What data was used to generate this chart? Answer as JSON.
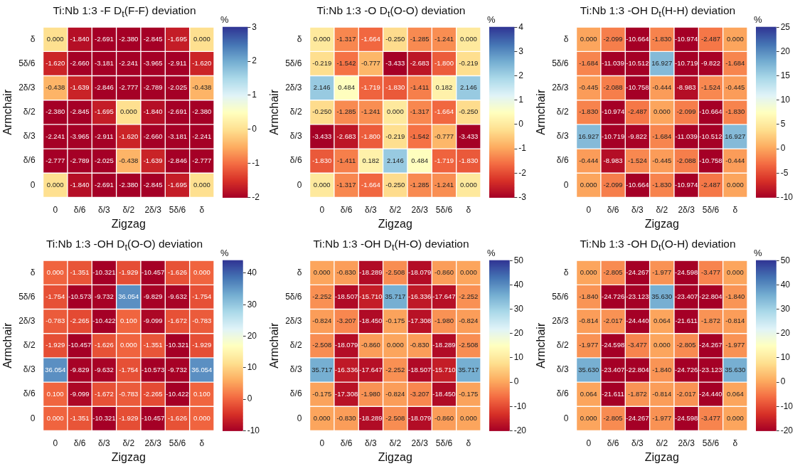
{
  "chart_data": [
    {
      "type": "heatmap",
      "title": "Ti:Nb 1:3 -F D$_{t}$(F-F) deviation",
      "xlabel": "Zigzag",
      "ylabel": "Armchair",
      "clabel": "%",
      "categories": [
        "0",
        "δ/6",
        "δ/3",
        "δ/2",
        "2δ/3",
        "5δ/6",
        "δ"
      ],
      "y_categories": [
        "δ",
        "5δ/6",
        "2δ/3",
        "δ/2",
        "δ/3",
        "δ/6",
        "0"
      ],
      "clim": [
        -2,
        3
      ],
      "cticks": [
        -2,
        -1,
        0,
        1,
        2,
        3
      ],
      "cells": [
        [
          0.0,
          -1.84,
          -2.691,
          -2.38,
          -2.845,
          -1.695,
          0.0
        ],
        [
          -1.62,
          -2.66,
          -3.181,
          -2.241,
          -3.965,
          -2.911,
          -1.62
        ],
        [
          -0.438,
          -1.639,
          -2.846,
          -2.777,
          -2.789,
          -2.025,
          -0.438
        ],
        [
          -2.38,
          -2.845,
          -1.695,
          0.0,
          -1.84,
          -2.691,
          -2.38
        ],
        [
          -2.241,
          -3.965,
          -2.911,
          -1.62,
          -2.66,
          -3.181,
          -2.241
        ],
        [
          -2.777,
          -2.789,
          -2.025,
          -0.438,
          -1.639,
          -2.846,
          -2.777
        ],
        [
          0.0,
          -1.84,
          -2.691,
          -2.38,
          -2.845,
          -1.695,
          0.0
        ]
      ],
      "cell_labels": [
        [
          "0.000",
          "-1.840",
          "-2.691",
          "-2.380",
          "-2.845",
          "-1.695",
          "0.000"
        ],
        [
          "-1.620",
          "-2.660",
          "-3.181",
          "-2.241",
          "-3.965",
          "-2.911",
          "-1.620"
        ],
        [
          "-0.438",
          "-1.639",
          "-2.846",
          "-2.777",
          "-2.789",
          "-2.025",
          "-0.438"
        ],
        [
          "-2.380",
          "-2.845",
          "-1.695",
          "0.000",
          "-1.840",
          "-2.691",
          "-2.380"
        ],
        [
          "-2.241",
          "-3.965",
          "-2.911",
          "-1.620",
          "-2.660",
          "-3.181",
          "-2.241"
        ],
        [
          "-2.777",
          "-2.789",
          "-2.025",
          "-0.438",
          "-1.639",
          "-2.846",
          "-2.777"
        ],
        [
          "0.000",
          "-1.840",
          "-2.691",
          "-2.380",
          "-2.845",
          "-1.695",
          "0.000"
        ]
      ]
    },
    {
      "type": "heatmap",
      "title": "Ti:Nb 1:3 -O D$_{t}$(O-O) deviation",
      "xlabel": "Zigzag",
      "ylabel": "Armchair",
      "clabel": "%",
      "categories": [
        "0",
        "δ/6",
        "δ/3",
        "δ/2",
        "2δ/3",
        "5δ/6",
        "δ"
      ],
      "y_categories": [
        "δ",
        "5δ/6",
        "2δ/3",
        "δ/2",
        "δ/3",
        "δ/6",
        "0"
      ],
      "clim": [
        -3,
        4
      ],
      "cticks": [
        -3,
        -2,
        -1,
        0,
        1,
        2,
        3,
        4
      ],
      "cells": [
        [
          0.0,
          -1.317,
          -1.664,
          -0.25,
          -1.285,
          -1.241,
          0.0
        ],
        [
          -0.219,
          -1.542,
          -0.777,
          -3.433,
          -2.683,
          -1.8,
          -0.219
        ],
        [
          2.146,
          0.484,
          -1.719,
          -1.83,
          -1.411,
          0.182,
          2.146
        ],
        [
          -0.25,
          -1.285,
          -1.241,
          0.0,
          -1.317,
          -1.664,
          -0.25
        ],
        [
          -3.433,
          -2.683,
          -1.8,
          -0.219,
          -1.542,
          -0.777,
          -3.433
        ],
        [
          -1.83,
          -1.411,
          0.182,
          2.146,
          0.484,
          -1.719,
          -1.83
        ],
        [
          0.0,
          -1.317,
          -1.664,
          -0.25,
          -1.285,
          -1.241,
          0.0
        ]
      ],
      "cell_labels": [
        [
          "0.000",
          "-1.317",
          "-1.664",
          "-0.250",
          "-1.285",
          "-1.241",
          "0.000"
        ],
        [
          "-0.219",
          "-1.542",
          "-0.777",
          "-3.433",
          "-2.683",
          "-1.800",
          "-0.219"
        ],
        [
          "2.146",
          "0.484",
          "-1.719",
          "-1.830",
          "-1.411",
          "0.182",
          "2.146"
        ],
        [
          "-0.250",
          "-1.285",
          "-1.241",
          "0.000",
          "-1.317",
          "-1.664",
          "-0.250"
        ],
        [
          "-3.433",
          "-2.683",
          "-1.800",
          "-0.219",
          "-1.542",
          "-0.777",
          "-3.433"
        ],
        [
          "-1.830",
          "-1.411",
          "0.182",
          "2.146",
          "0.484",
          "-1.719",
          "-1.830"
        ],
        [
          "0.000",
          "-1.317",
          "-1.664",
          "-0.250",
          "-1.285",
          "-1.241",
          "0.000"
        ]
      ]
    },
    {
      "type": "heatmap",
      "title": "Ti:Nb 1:3 -OH D$_{t}$(H-H) deviation",
      "xlabel": "Zigzag",
      "ylabel": "Armchair",
      "clabel": "%",
      "categories": [
        "0",
        "δ/6",
        "δ/3",
        "δ/2",
        "2δ/3",
        "5δ/6",
        "δ"
      ],
      "y_categories": [
        "δ",
        "5δ/6",
        "2δ/3",
        "δ/2",
        "δ/3",
        "δ/6",
        "0"
      ],
      "clim": [
        -10,
        25
      ],
      "cticks": [
        -10,
        -5,
        0,
        5,
        10,
        15,
        20,
        25
      ],
      "cells": [
        [
          0.0,
          -2.099,
          -10.664,
          -1.83,
          -10.974,
          -2.487,
          0.0
        ],
        [
          -1.684,
          -11.039,
          -10.512,
          16.927,
          -10.719,
          -9.822,
          -1.684
        ],
        [
          -0.445,
          -2.088,
          -10.758,
          -0.444,
          -8.983,
          -1.524,
          -0.445
        ],
        [
          -1.83,
          -10.974,
          -2.487,
          0.0,
          -2.099,
          -10.664,
          -1.83
        ],
        [
          16.927,
          -10.719,
          -9.822,
          -1.684,
          -11.039,
          -10.512,
          16.927
        ],
        [
          -0.444,
          -8.983,
          -1.524,
          -0.445,
          -2.088,
          -10.758,
          -0.444
        ],
        [
          0.0,
          -2.099,
          -10.664,
          -1.83,
          -10.974,
          -2.487,
          0.0
        ]
      ],
      "cell_labels": [
        [
          "0.000",
          "-2.099",
          "-10.664",
          "-1.830",
          "-10.974",
          "-2.487",
          "0.000"
        ],
        [
          "-1.684",
          "-11.039",
          "-10.512",
          "16.927",
          "-10.719",
          "-9.822",
          "-1.684"
        ],
        [
          "-0.445",
          "-2.088",
          "-10.758",
          "-0.444",
          "-8.983",
          "-1.524",
          "-0.445"
        ],
        [
          "-1.830",
          "-10.974",
          "-2.487",
          "0.000",
          "-2.099",
          "-10.664",
          "-1.830"
        ],
        [
          "16.927",
          "-10.719",
          "-9.822",
          "-1.684",
          "-11.039",
          "-10.512",
          "16.927"
        ],
        [
          "-0.444",
          "-8.983",
          "-1.524",
          "-0.445",
          "-2.088",
          "-10.758",
          "-0.444"
        ],
        [
          "0.000",
          "-2.099",
          "-10.664",
          "-1.830",
          "-10.974",
          "-2.487",
          "0.000"
        ]
      ]
    },
    {
      "type": "heatmap",
      "title": "Ti:Nb 1:3 -OH D$_{t}$(O-O) deviation",
      "xlabel": "Zigzag",
      "ylabel": "Armchair",
      "clabel": "%",
      "categories": [
        "0",
        "δ/6",
        "δ/3",
        "δ/2",
        "2δ/3",
        "5δ/6",
        "δ"
      ],
      "y_categories": [
        "δ",
        "5δ/6",
        "2δ/3",
        "δ/2",
        "δ/3",
        "δ/6",
        "0"
      ],
      "clim": [
        -10,
        44
      ],
      "cticks": [
        -10,
        0,
        10,
        20,
        30,
        40
      ],
      "cells": [
        [
          0.0,
          -1.351,
          -10.321,
          -1.929,
          -10.457,
          -1.626,
          0.0
        ],
        [
          -1.754,
          -10.573,
          -9.732,
          36.054,
          -9.829,
          -9.632,
          -1.754
        ],
        [
          -0.783,
          -2.265,
          -10.422,
          0.1,
          -9.099,
          -1.672,
          -0.783
        ],
        [
          -1.929,
          -10.457,
          -1.626,
          0.0,
          -1.351,
          -10.321,
          -1.929
        ],
        [
          36.054,
          -9.829,
          -9.632,
          -1.754,
          -10.573,
          -9.732,
          36.054
        ],
        [
          0.1,
          -9.099,
          -1.672,
          -0.783,
          -2.265,
          -10.422,
          0.1
        ],
        [
          0.0,
          -1.351,
          -10.321,
          -1.929,
          -10.457,
          -1.626,
          0.0
        ]
      ],
      "cell_labels": [
        [
          "0.000",
          "-1.351",
          "-10.321",
          "-1.929",
          "-10.457",
          "-1.626",
          "0.000"
        ],
        [
          "-1.754",
          "-10.573",
          "-9.732",
          "36.054",
          "-9.829",
          "-9.632",
          "-1.754"
        ],
        [
          "-0.783",
          "-2.265",
          "-10.422",
          "0.100",
          "-9.099",
          "-1.672",
          "-0.783"
        ],
        [
          "-1.929",
          "-10.457",
          "-1.626",
          "0.000",
          "-1.351",
          "-10.321",
          "-1.929"
        ],
        [
          "36.054",
          "-9.829",
          "-9.632",
          "-1.754",
          "-10.573",
          "-9.732",
          "36.054"
        ],
        [
          "0.100",
          "-9.099",
          "-1.672",
          "-0.783",
          "-2.265",
          "-10.422",
          "0.100"
        ],
        [
          "0.000",
          "-1.351",
          "-10.321",
          "-1.929",
          "-10.457",
          "-1.626",
          "0.000"
        ]
      ]
    },
    {
      "type": "heatmap",
      "title": "Ti:Nb 1:3 -OH D$_{t}$(H-O) deviation",
      "xlabel": "Zigzag",
      "ylabel": "Armchair",
      "clabel": "%",
      "categories": [
        "0",
        "δ/6",
        "δ/3",
        "δ/2",
        "2δ/3",
        "5δ/6",
        "δ"
      ],
      "y_categories": [
        "δ",
        "5δ/6",
        "2δ/3",
        "δ/2",
        "δ/3",
        "δ/6",
        "0"
      ],
      "clim": [
        -20,
        50
      ],
      "cticks": [
        -20,
        -10,
        0,
        10,
        20,
        30,
        40,
        50
      ],
      "cells": [
        [
          0.0,
          -0.83,
          -18.289,
          -2.508,
          -18.079,
          -0.86,
          0.0
        ],
        [
          -2.252,
          -18.507,
          -15.71,
          35.717,
          -16.336,
          -17.647,
          -2.252
        ],
        [
          -0.824,
          -3.207,
          -18.45,
          -0.175,
          -17.308,
          -1.98,
          -0.824
        ],
        [
          -2.508,
          -18.079,
          -0.86,
          0.0,
          -0.83,
          -18.289,
          -2.508
        ],
        [
          35.717,
          -16.336,
          -17.647,
          -2.252,
          -18.507,
          -15.71,
          35.717
        ],
        [
          -0.175,
          -17.308,
          -1.98,
          -0.824,
          -3.207,
          -18.45,
          -0.175
        ],
        [
          0.0,
          -0.83,
          -18.289,
          -2.508,
          -18.079,
          -0.86,
          0.0
        ]
      ],
      "cell_labels": [
        [
          "0.000",
          "-0.830",
          "-18.289",
          "-2.508",
          "-18.079",
          "-0.860",
          "0.000"
        ],
        [
          "-2.252",
          "-18.507",
          "-15.710",
          "35.717",
          "-16.336",
          "-17.647",
          "-2.252"
        ],
        [
          "-0.824",
          "-3.207",
          "-18.450",
          "-0.175",
          "-17.308",
          "-1.980",
          "-0.824"
        ],
        [
          "-2.508",
          "-18.079",
          "-0.860",
          "0.000",
          "-0.830",
          "-18.289",
          "-2.508"
        ],
        [
          "35.717",
          "-16.336",
          "-17.647",
          "-2.252",
          "-18.507",
          "-15.710",
          "35.717"
        ],
        [
          "-0.175",
          "-17.308",
          "-1.980",
          "-0.824",
          "-3.207",
          "-18.450",
          "-0.175"
        ],
        [
          "0.000",
          "-0.830",
          "-18.289",
          "-2.508",
          "-18.079",
          "-0.860",
          "0.000"
        ]
      ]
    },
    {
      "type": "heatmap",
      "title": "Ti:Nb 1:3 -OH D$_{t}$(O-H) deviation",
      "xlabel": "Zigzag",
      "ylabel": "Armchair",
      "clabel": "%",
      "categories": [
        "0",
        "δ/6",
        "δ/3",
        "δ/2",
        "2δ/3",
        "5δ/6",
        "δ"
      ],
      "y_categories": [
        "δ",
        "5δ/6",
        "2δ/3",
        "δ/2",
        "δ/3",
        "δ/6",
        "0"
      ],
      "clim": [
        -20,
        50
      ],
      "cticks": [
        -20,
        -10,
        0,
        10,
        20,
        30,
        40,
        50
      ],
      "cells": [
        [
          0.0,
          -2.805,
          -24.267,
          -1.977,
          -24.598,
          -3.477,
          0.0
        ],
        [
          -1.84,
          -24.726,
          -23.123,
          35.63,
          -23.407,
          -22.804,
          -1.84
        ],
        [
          -0.814,
          -2.017,
          -24.44,
          0.064,
          -21.611,
          -1.872,
          -0.814
        ],
        [
          -1.977,
          -24.598,
          -3.477,
          0.0,
          -2.805,
          -24.267,
          -1.977
        ],
        [
          35.63,
          -23.407,
          -22.804,
          -1.84,
          -24.726,
          -23.123,
          35.63
        ],
        [
          0.064,
          -21.611,
          -1.872,
          -0.814,
          -2.017,
          -24.44,
          0.064
        ],
        [
          0.0,
          -2.805,
          -24.267,
          -1.977,
          -24.598,
          -3.477,
          0.0
        ]
      ],
      "cell_labels": [
        [
          "0.000",
          "-2.805",
          "-24.267",
          "-1.977",
          "-24.598",
          "-3.477",
          "0.000"
        ],
        [
          "-1.840",
          "-24.726",
          "-23.123",
          "35.630",
          "-23.407",
          "-22.804",
          "-1.840"
        ],
        [
          "-0.814",
          "-2.017",
          "-24.440",
          "0.064",
          "-21.611",
          "-1.872",
          "-0.814"
        ],
        [
          "-1.977",
          "-24.598",
          "-3.477",
          "0.000",
          "-2.805",
          "-24.267",
          "-1.977"
        ],
        [
          "35.630",
          "-23.407",
          "-22.804",
          "-1.840",
          "-24.726",
          "-23.123",
          "35.630"
        ],
        [
          "0.064",
          "-21.611",
          "-1.872",
          "-0.814",
          "-2.017",
          "-24.440",
          "0.064"
        ],
        [
          "0.000",
          "-2.805",
          "-24.267",
          "-1.977",
          "-24.598",
          "-3.477",
          "0.000"
        ]
      ]
    }
  ]
}
